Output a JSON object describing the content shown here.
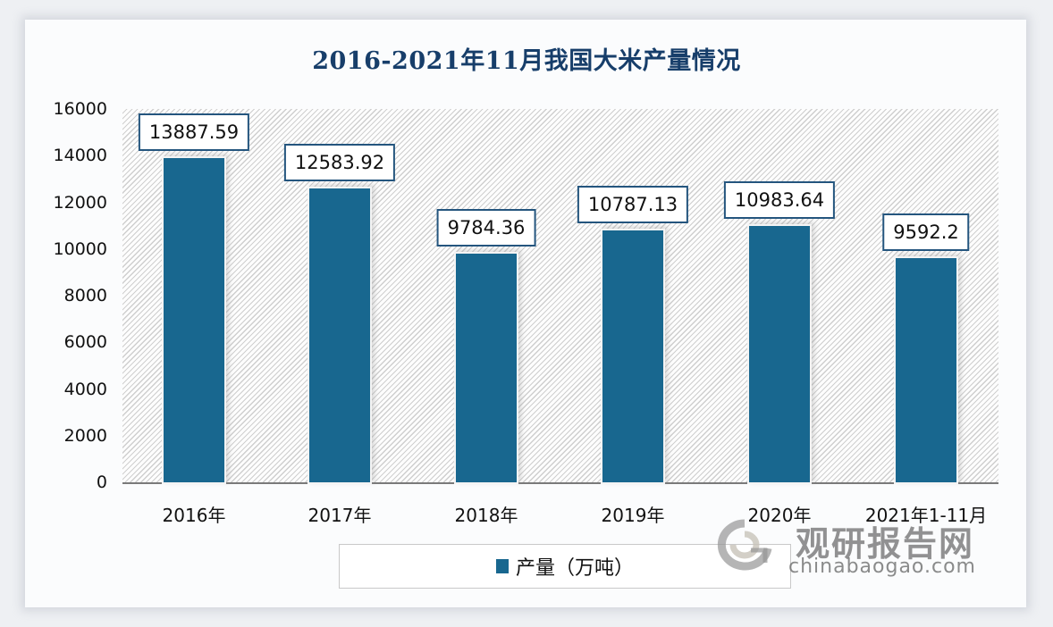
{
  "title": "2016-2021年11月我国大米产量情况",
  "y_axis": {
    "ticks": [
      "16000",
      "14000",
      "12000",
      "10000",
      "8000",
      "6000",
      "4000",
      "2000",
      "0"
    ]
  },
  "x_axis": {
    "ticks": [
      "2016年",
      "2017年",
      "2018年",
      "2019年",
      "2020年",
      "2021年1-11月"
    ]
  },
  "data_labels": [
    "13887.59",
    "12583.92",
    "9784.36",
    "10787.13",
    "10983.64",
    "9592.2"
  ],
  "legend": {
    "label": "产量（万吨）",
    "color": "#18678f"
  },
  "watermark": {
    "cn": "观研报告网",
    "en": "chinabaogao.com"
  },
  "colors": {
    "bar": "#18678f",
    "title": "#173e6a",
    "label_border": "#24557e"
  },
  "chart_data": {
    "type": "bar",
    "title": "2016-2021年11月我国大米产量情况",
    "categories": [
      "2016年",
      "2017年",
      "2018年",
      "2019年",
      "2020年",
      "2021年1-11月"
    ],
    "series": [
      {
        "name": "产量（万吨）",
        "values": [
          13887.59,
          12583.92,
          9784.36,
          10787.13,
          10983.64,
          9592.2
        ]
      }
    ],
    "xlabel": "",
    "ylabel": "",
    "ylim": [
      0,
      16000
    ],
    "yticks": [
      0,
      2000,
      4000,
      6000,
      8000,
      10000,
      12000,
      14000,
      16000
    ],
    "grid": false,
    "legend_position": "bottom",
    "data_labels": true
  }
}
